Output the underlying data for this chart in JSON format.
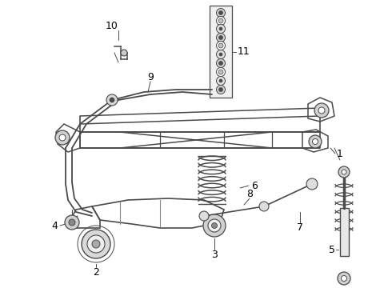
{
  "bg_color": "#ffffff",
  "lc": "#4a4a4a",
  "tc": "#000000",
  "figsize": [
    4.9,
    3.6
  ],
  "dpi": 100
}
